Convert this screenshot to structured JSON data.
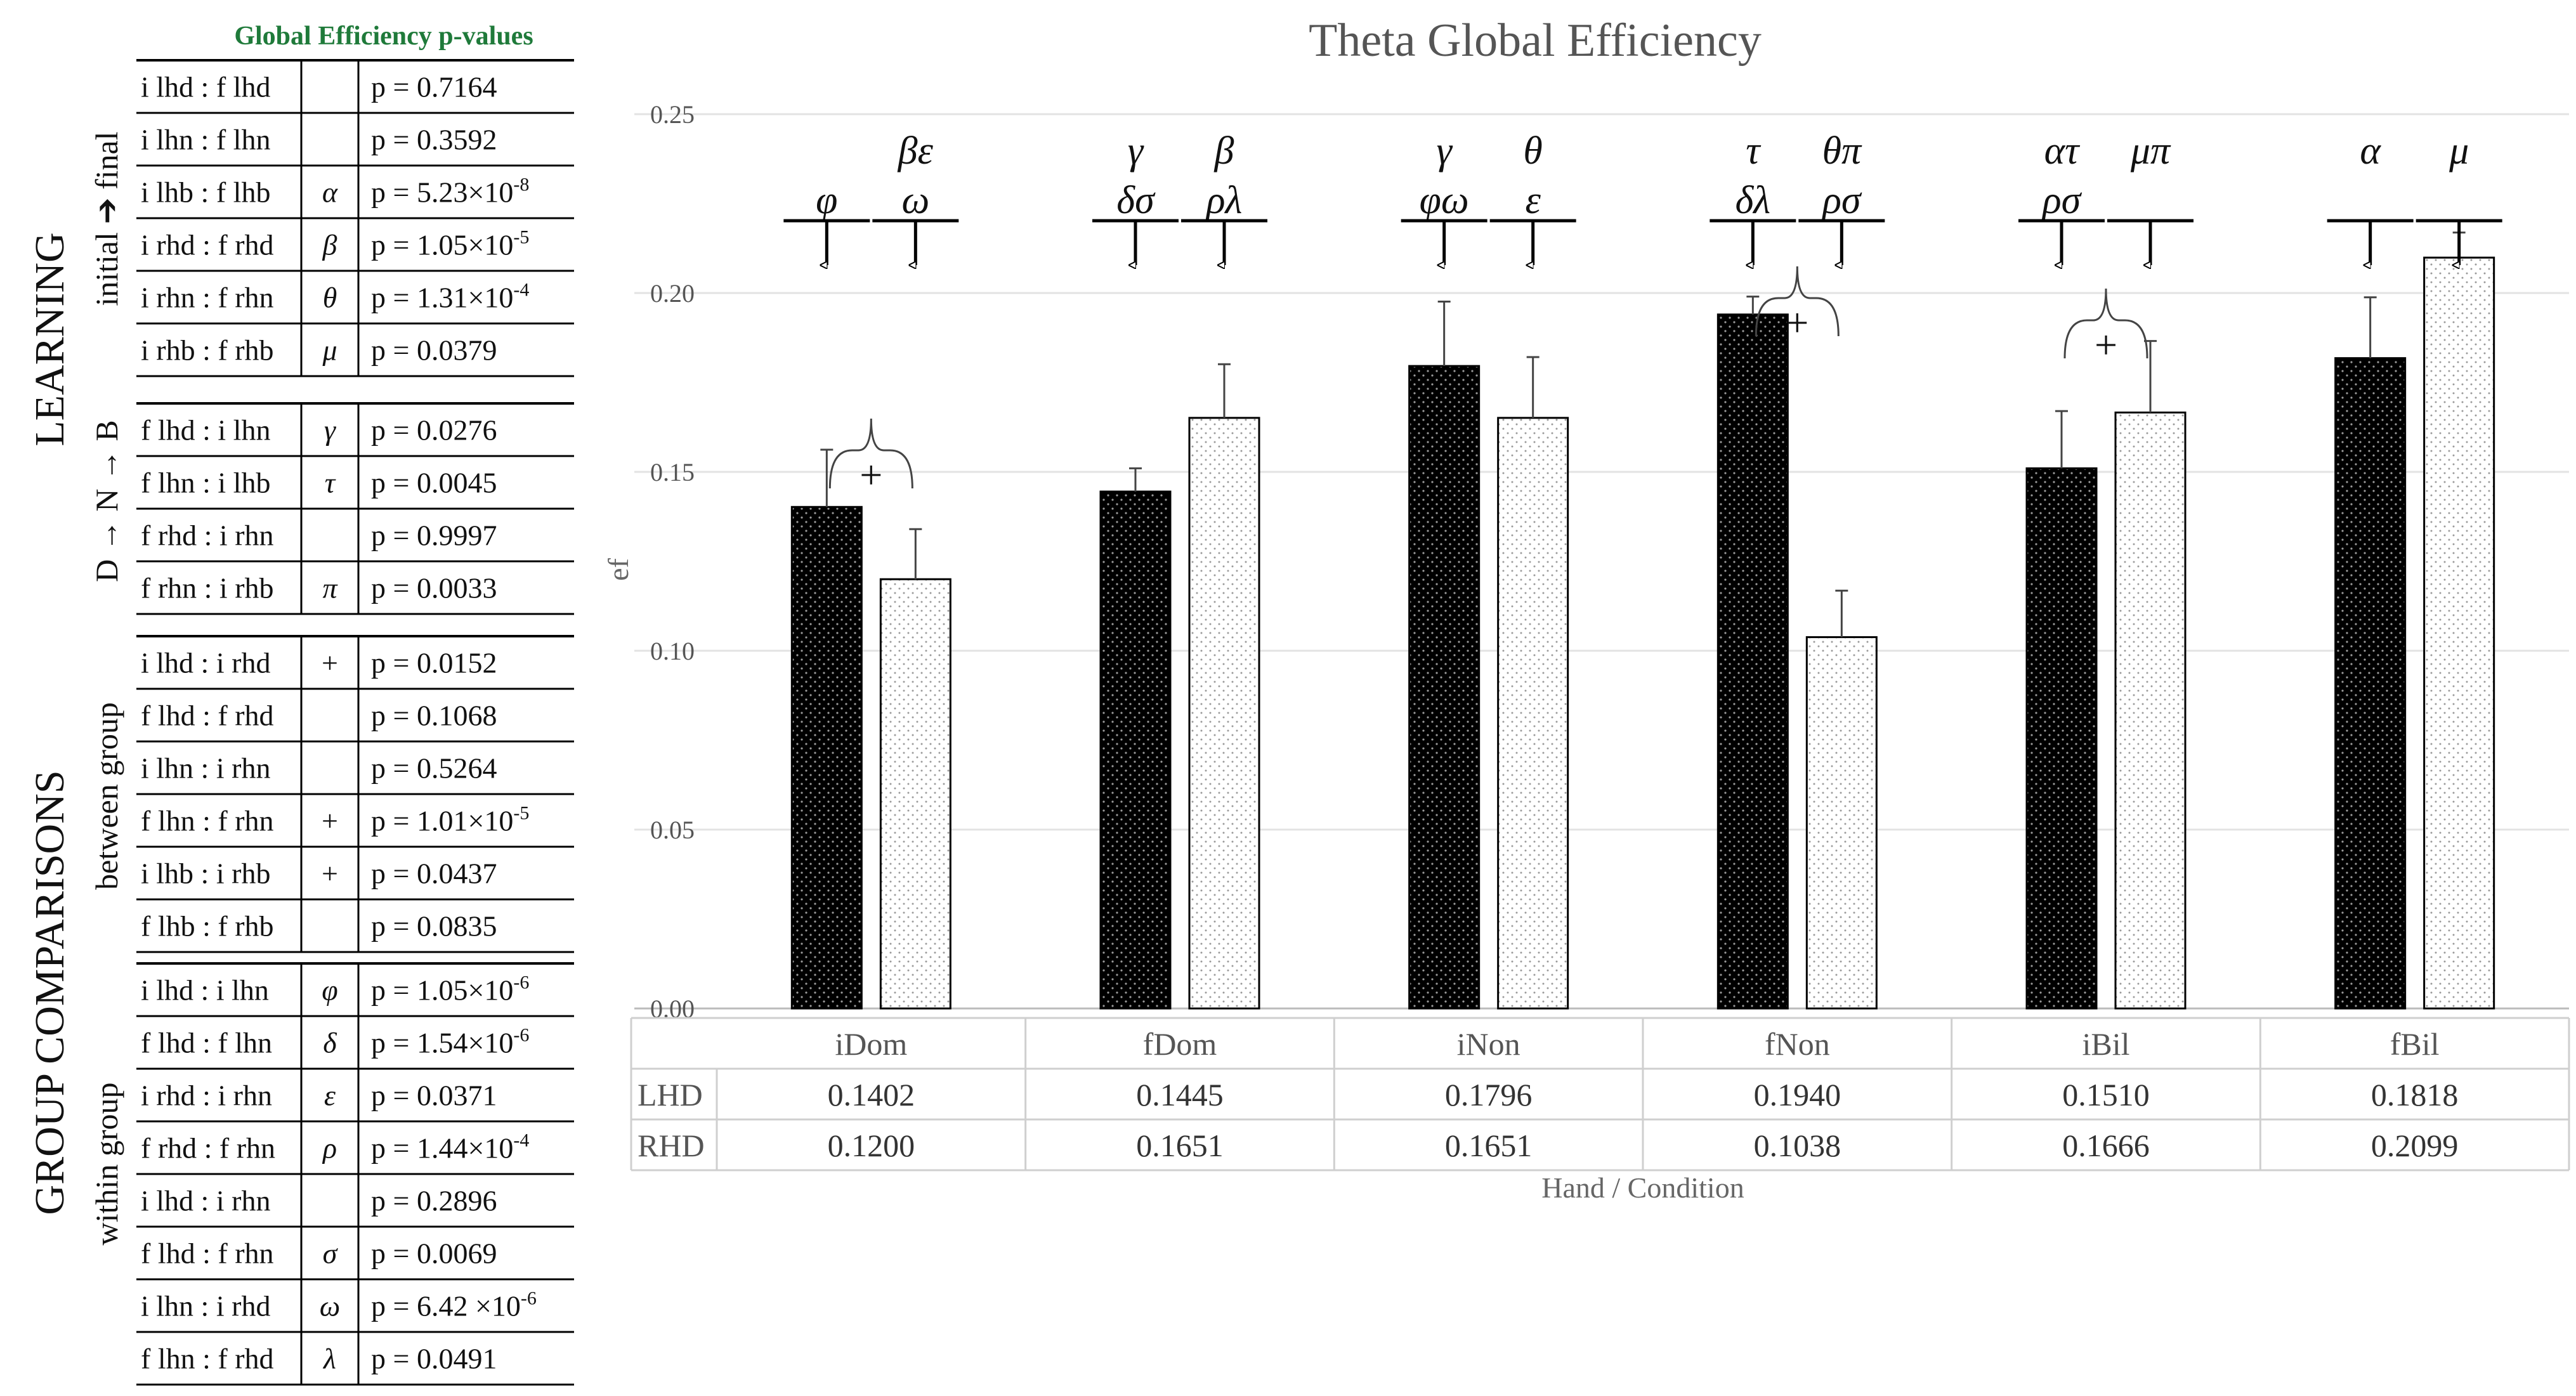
{
  "table": {
    "title": "Global Efficiency p-values",
    "sections": [
      {
        "label": "LEARNING",
        "groups": [
          {
            "label": "initial ➔ final",
            "rows": [
              {
                "comp": "i lhd : f lhd",
                "sym": "",
                "p": "p = 0.7164"
              },
              {
                "comp": "i lhn : f lhn",
                "sym": "",
                "p": "p = 0.3592"
              },
              {
                "comp": "i lhb : f lhb",
                "sym": "α",
                "p": "p = 5.23×10",
                "exp": "-8"
              },
              {
                "comp": "i rhd : f rhd",
                "sym": "β",
                "p": "p = 1.05×10",
                "exp": "-5"
              },
              {
                "comp": "i rhn : f rhn",
                "sym": "θ",
                "p": "p = 1.31×10",
                "exp": "-4"
              },
              {
                "comp": "i rhb : f rhb",
                "sym": "μ",
                "p": "p = 0.0379"
              }
            ]
          },
          {
            "label": "D → N → B",
            "rows": [
              {
                "comp": "f lhd : i lhn",
                "sym": "γ",
                "p": "p = 0.0276"
              },
              {
                "comp": "f lhn : i lhb",
                "sym": "τ",
                "p": "p = 0.0045"
              },
              {
                "comp": "f rhd : i rhn",
                "sym": "",
                "p": "p = 0.9997"
              },
              {
                "comp": "f rhn : i rhb",
                "sym": "π",
                "p": "p = 0.0033"
              }
            ]
          }
        ]
      },
      {
        "label": "GROUP COMPARISONS",
        "groups": [
          {
            "label": "between group",
            "rows": [
              {
                "comp": "i lhd : i rhd",
                "sym": "+",
                "p": "p = 0.0152"
              },
              {
                "comp": "f lhd : f rhd",
                "sym": "",
                "p": "p = 0.1068"
              },
              {
                "comp": "i lhn : i rhn",
                "sym": "",
                "p": "p = 0.5264"
              },
              {
                "comp": "f lhn : f rhn",
                "sym": "+",
                "p": "p = 1.01×10",
                "exp": "-5"
              },
              {
                "comp": "i lhb : i rhb",
                "sym": "+",
                "p": "p = 0.0437"
              },
              {
                "comp": "f lhb : f rhb",
                "sym": "",
                "p": "p = 0.0835"
              }
            ]
          },
          {
            "label": "within group",
            "rows": [
              {
                "comp": "i lhd : i lhn",
                "sym": "φ",
                "p": "p = 1.05×10",
                "exp": "-6"
              },
              {
                "comp": "f lhd : f lhn",
                "sym": "δ",
                "p": "p = 1.54×10",
                "exp": "-6"
              },
              {
                "comp": "i rhd : i rhn",
                "sym": "ε",
                "p": "p = 0.0371"
              },
              {
                "comp": "f rhd : f rhn",
                "sym": "ρ",
                "p": "p = 1.44×10",
                "exp": "-4"
              },
              {
                "comp": "i lhd : i rhn",
                "sym": "",
                "p": "p = 0.2896"
              },
              {
                "comp": "f lhd : f rhn",
                "sym": "σ",
                "p": "p = 0.0069"
              },
              {
                "comp": "i lhn : i rhd",
                "sym": "ω",
                "p": "p = 6.42 ×10",
                "exp": "-6"
              },
              {
                "comp": "f lhn : f rhd",
                "sym": "λ",
                "p": "p = 0.0491"
              }
            ]
          }
        ]
      }
    ]
  },
  "chart_data": {
    "type": "bar",
    "title": "Theta Global Efficiency",
    "xlabel": "Hand / Condition",
    "ylabel": "ef",
    "ylim": [
      0,
      0.25
    ],
    "yticks": [
      "0.00",
      "0.05",
      "0.10",
      "0.15",
      "0.20",
      "0.25"
    ],
    "categories": [
      "iDom",
      "fDom",
      "iNon",
      "fNon",
      "iBil",
      "fBil"
    ],
    "series": [
      {
        "name": "LHD",
        "color": "#000000",
        "values": [
          0.1402,
          0.1445,
          0.1796,
          0.194,
          0.151,
          0.1818
        ],
        "value_labels": [
          "0.1402",
          "0.1445",
          "0.1796",
          "0.1940",
          "0.1510",
          "0.1818"
        ],
        "errors": [
          0.016,
          0.0065,
          0.018,
          0.005,
          0.016,
          0.017
        ]
      },
      {
        "name": "RHD",
        "color": "#ffffff",
        "values": [
          0.12,
          0.1651,
          0.1651,
          0.1038,
          0.1666,
          0.2099
        ],
        "value_labels": [
          "0.1200",
          "0.1651",
          "0.1651",
          "0.1038",
          "0.1666",
          "0.2099"
        ],
        "errors": [
          0.014,
          0.015,
          0.017,
          0.013,
          0.02,
          0.007
        ]
      }
    ],
    "annotations": [
      {
        "cat": 0,
        "series": 0,
        "top": "",
        "bottom": "φ"
      },
      {
        "cat": 0,
        "series": 1,
        "top": "βε",
        "bottom": "ω"
      },
      {
        "cat": 1,
        "series": 0,
        "top": "γ",
        "bottom": "δσ"
      },
      {
        "cat": 1,
        "series": 1,
        "top": "β",
        "bottom": "ρλ"
      },
      {
        "cat": 2,
        "series": 0,
        "top": "γ",
        "bottom": "φω"
      },
      {
        "cat": 2,
        "series": 1,
        "top": "θ",
        "bottom": "ε"
      },
      {
        "cat": 3,
        "series": 0,
        "top": "τ",
        "bottom": "δλ"
      },
      {
        "cat": 3,
        "series": 1,
        "top": "θπ",
        "bottom": "ρσ"
      },
      {
        "cat": 4,
        "series": 0,
        "top": "ατ",
        "bottom": "ρσ"
      },
      {
        "cat": 4,
        "series": 1,
        "top": "μπ",
        "bottom": ""
      },
      {
        "cat": 5,
        "series": 0,
        "top": "α",
        "bottom": ""
      },
      {
        "cat": 5,
        "series": 1,
        "top": "μ",
        "bottom": ""
      }
    ],
    "between_group_marks": [
      {
        "cat": 0,
        "symbol": "+"
      },
      {
        "cat": 3,
        "symbol": "+"
      },
      {
        "cat": 4,
        "symbol": "+"
      }
    ]
  }
}
